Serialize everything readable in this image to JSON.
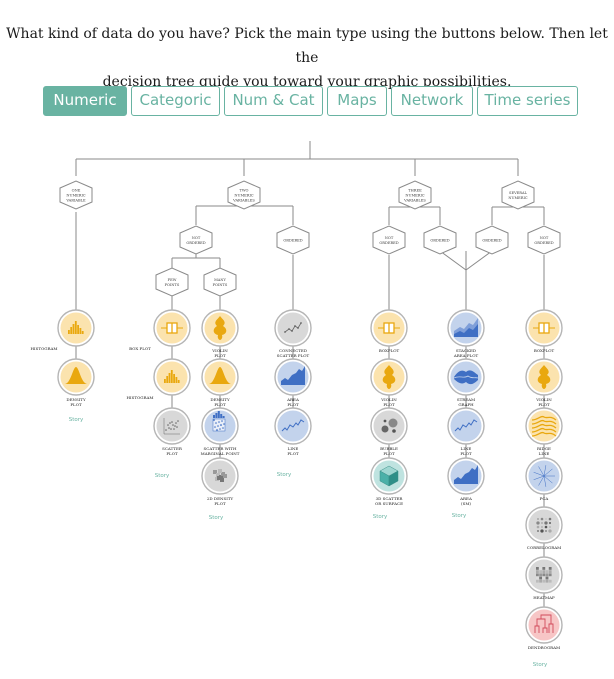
{
  "intro": {
    "line1": "What kind of data do you have? Pick the main type using the buttons below. Then let the",
    "line2": "decision tree guide you toward your graphic possibilities."
  },
  "buttons": [
    "Numeric",
    "Categoric",
    "Num & Cat",
    "Maps",
    "Network",
    "Time series"
  ],
  "active_button": "Numeric",
  "colors": {
    "accent": "#69b3a2",
    "line": "#8a8a8a",
    "orange_bg": "#fbe3ae",
    "orange_mark": "#e9a80f",
    "grey_bg": "#d8d8d8",
    "blue_bg": "#c3d3ec",
    "blue_mark": "#3f6fc4",
    "teal_bg": "#bfe3e0",
    "pink_bg": "#f7c6c6"
  },
  "tree": {
    "decisions": {
      "one_numeric": [
        "ONE",
        "NUMERIC",
        "VARIABLE"
      ],
      "two_numeric": [
        "TWO",
        "NUMERIC",
        "VARIABLES"
      ],
      "three_numeric": [
        "THREE",
        "NUMERIC",
        "VARIABLES"
      ],
      "several_numeric": [
        "SEVERAL",
        "NUMERIC"
      ],
      "not_ordered_a": [
        "NOT",
        "ORDERED"
      ],
      "ordered_a": [
        "ORDERED"
      ],
      "few_points": [
        "FEW",
        "POINTS"
      ],
      "many_points": [
        "MANY",
        "POINTS"
      ],
      "not_ordered_b": [
        "NOT",
        "ORDERED"
      ],
      "ordered_b": [
        "ORDERED"
      ],
      "ordered_c": [
        "ORDERED"
      ],
      "not_ordered_c": [
        "NOT",
        "ORDERED"
      ]
    },
    "charts": {
      "histogram_1": [
        "HISTOGRAM"
      ],
      "density_1": [
        "DENSITY",
        "PLOT"
      ],
      "boxplot_1": [
        "BOX PLOT"
      ],
      "histogram_2": [
        "HISTOGRAM"
      ],
      "scatter_1": [
        "SCATTER",
        "PLOT"
      ],
      "violin_1": [
        "VIOLIN",
        "PLOT"
      ],
      "density_2": [
        "DENSITY",
        "PLOT"
      ],
      "scatter_marginal": [
        "SCATTER WITH",
        "MARGINAL POINT"
      ],
      "density_2d": [
        "2D DENSITY",
        "PLOT"
      ],
      "connected_scatter": [
        "CONNECTED",
        "SCATTER PLOT"
      ],
      "area_1": [
        "AREA",
        "PLOT"
      ],
      "line_1": [
        "LINE",
        "PLOT"
      ],
      "boxplot_2": [
        "BOXPLOT"
      ],
      "violin_2": [
        "VIOLIN",
        "PLOT"
      ],
      "bubble": [
        "BUBBLE",
        "PLOT"
      ],
      "scatter_3d": [
        "3D SCATTER",
        "OR SURFACE"
      ],
      "stacked_area": [
        "STACKED",
        "AREA PLOT"
      ],
      "stream": [
        "STREAM",
        "GRAPH"
      ],
      "line_2": [
        "LINE",
        "PLOT"
      ],
      "area_sm": [
        "AREA",
        "(SM)"
      ],
      "boxplot_3": [
        "BOXPLOT"
      ],
      "violin_3": [
        "VIOLIN",
        "PLOT"
      ],
      "ridge": [
        "RIDGE",
        "LINE"
      ],
      "pca": [
        "PCA"
      ],
      "correlogram": [
        "CORRELOGRAM"
      ],
      "heatmap": [
        "HEATMAP"
      ],
      "dendrogram": [
        "DENDROGRAM"
      ]
    },
    "story_label": "Story"
  }
}
